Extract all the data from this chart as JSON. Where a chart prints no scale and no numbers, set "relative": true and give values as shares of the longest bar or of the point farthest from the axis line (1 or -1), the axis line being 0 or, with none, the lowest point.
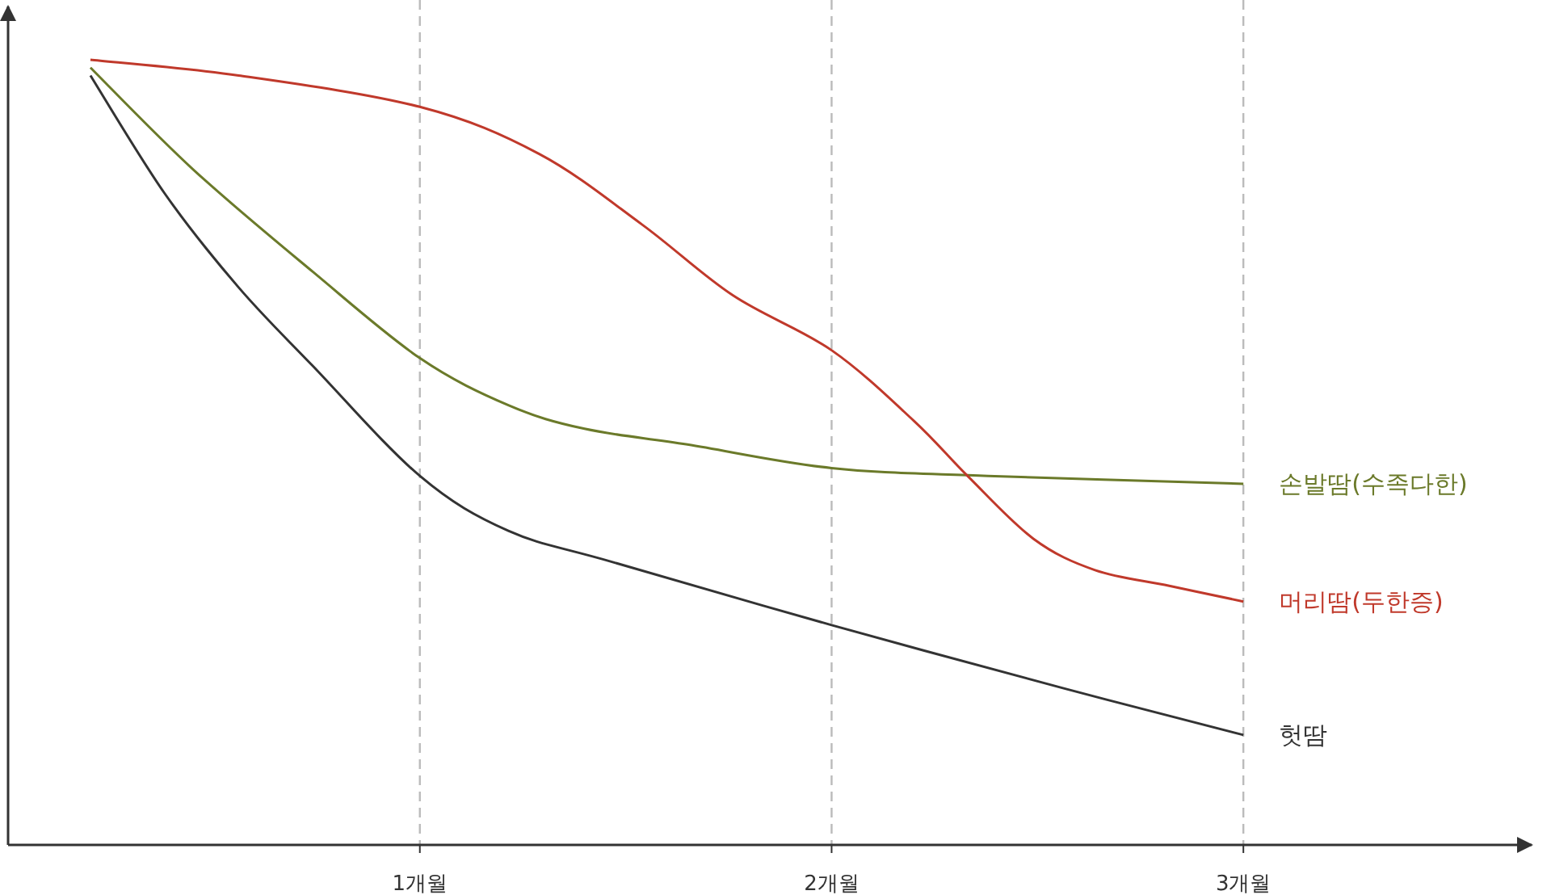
{
  "chart_data": {
    "type": "line",
    "relative": true,
    "xlim": [
      0,
      3.7
    ],
    "xticks": [
      {
        "value": 1,
        "label": "1개월"
      },
      {
        "value": 2,
        "label": "2개월"
      },
      {
        "value": 3,
        "label": "3개월"
      }
    ],
    "grid": "x",
    "marker": "none",
    "line_style": "solid",
    "series": [
      {
        "name": "손발땀(수족다한)",
        "color": "#6b7a2a",
        "x": [
          0.2,
          0.45,
          0.74,
          1.0,
          1.215,
          1.4,
          1.65,
          2.0,
          2.38,
          3.0
        ],
        "values": [
          0.99,
          0.86,
          0.73,
          0.62,
          0.56,
          0.53,
          0.51,
          0.48,
          0.47,
          0.46
        ]
      },
      {
        "name": "머리땀(두한증)",
        "color": "#c0392b",
        "x": [
          0.2,
          0.56,
          1.0,
          1.29,
          1.54,
          1.76,
          2.0,
          2.2,
          2.33,
          2.49,
          2.64,
          2.82,
          3.0
        ],
        "values": [
          1.0,
          0.98,
          0.94,
          0.88,
          0.79,
          0.7,
          0.63,
          0.54,
          0.47,
          0.39,
          0.35,
          0.33,
          0.31
        ]
      },
      {
        "name": "헛땀",
        "color": "#333333",
        "x": [
          0.2,
          0.38,
          0.56,
          0.74,
          1.0,
          1.215,
          1.47,
          2.0,
          2.56,
          3.0
        ],
        "values": [
          0.98,
          0.83,
          0.71,
          0.61,
          0.47,
          0.4,
          0.36,
          0.28,
          0.2,
          0.14
        ]
      }
    ]
  }
}
